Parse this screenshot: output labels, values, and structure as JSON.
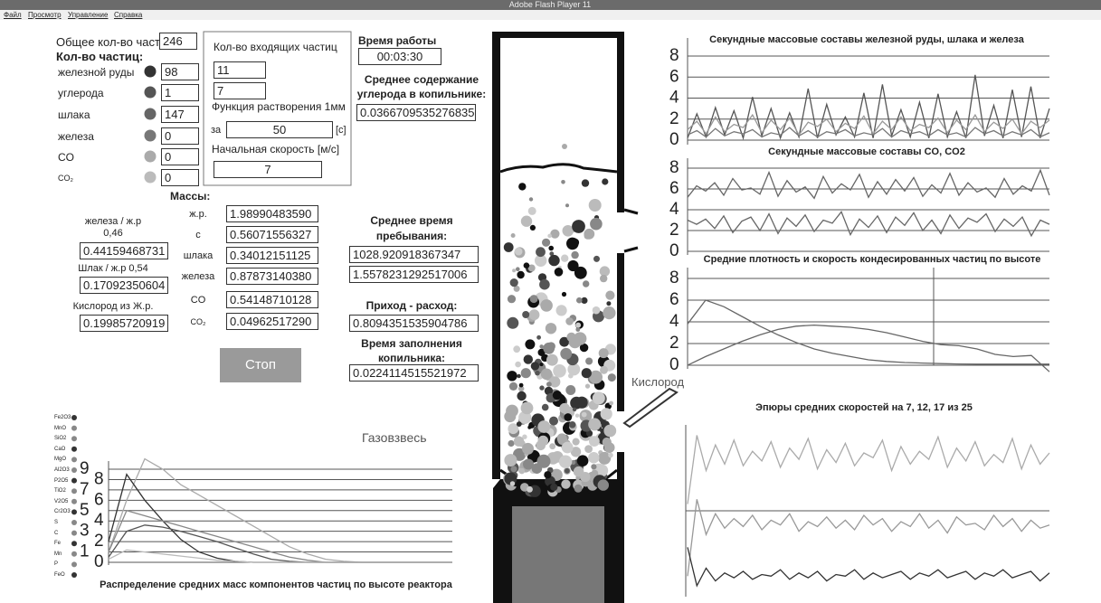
{
  "window": {
    "title": "Adobe Flash Player 11",
    "menu": [
      "Файл",
      "Просмотр",
      "Управление",
      "Справка"
    ]
  },
  "particles": {
    "total_label": "Общее кол-во частиц",
    "total": "246",
    "header": "Кол-во частиц:",
    "rows": [
      {
        "label": "железной руды",
        "value": "98",
        "color": "#333333"
      },
      {
        "label": "углерода",
        "value": "1",
        "color": "#555555"
      },
      {
        "label": "шлака",
        "value": "147",
        "color": "#666666"
      },
      {
        "label": "железа",
        "value": "0",
        "color": "#777777"
      },
      {
        "label": "CO",
        "value": "0",
        "color": "#aaaaaa"
      },
      {
        "label": "CO₂",
        "value": "0",
        "color": "#bbbbbb"
      }
    ]
  },
  "incoming": {
    "title": "Кол-во входящих частиц",
    "inputs": [
      "11",
      "7"
    ],
    "dissolution_label": "Функция растворения 1мм",
    "for_label": "за",
    "period": "50",
    "period_unit": "[c]",
    "speed_label": "Начальная скорость [м/с]",
    "speed": "7"
  },
  "runtime": {
    "label": "Время работы",
    "value": "00:03:30"
  },
  "carbon": {
    "label": "Среднее содержание углерода в копильнике:",
    "value": "0.0366709535276835"
  },
  "masses": {
    "title": "Массы:",
    "rows": [
      {
        "label": "ж.р.",
        "value": "1.98990483590"
      },
      {
        "label": "с",
        "value": "0.56071556327"
      },
      {
        "label": "шлака",
        "value": "0.34012151125"
      },
      {
        "label": "железа",
        "value": "0.87873140380"
      },
      {
        "label": "CO",
        "value": "0.54148710128"
      },
      {
        "label": "CO₂",
        "value": "0.04962517290"
      }
    ]
  },
  "ratios": [
    {
      "label": "железа / ж.р",
      "sublabel": "0,46",
      "value": "0.44159468731"
    },
    {
      "label": "Шлак / ж.р 0,54",
      "value": "0.17092350604"
    },
    {
      "label": "Кислород из Ж.р.",
      "value": "0.19985720919"
    }
  ],
  "residence": {
    "label": "Среднее время пребывания:",
    "values": [
      "1028.920918367347",
      "1.5578231292517006"
    ]
  },
  "balance": {
    "label": "Приход - расход:",
    "value": "0.8094351535904786"
  },
  "fill_time": {
    "label": "Время заполнения копильника:",
    "value": "0.0224114515521972"
  },
  "stop_button": "Стоп",
  "gas_label": "Газовзвесь",
  "oxygen_label": "Кислород",
  "components": [
    "Fe2O3",
    "MnO",
    "SiO2",
    "CaO",
    "MgO",
    "Al2O3",
    "P2O5",
    "TiO2",
    "V2O5",
    "Cr2O3",
    "S",
    "C",
    "Fe",
    "Mn",
    "P",
    "FeO"
  ],
  "charts": [
    {
      "type": "line",
      "title": "Распределение средних масс компонентов частиц по высоте реактора",
      "ylim": [
        0,
        9
      ],
      "yticks": [
        0,
        1,
        2,
        3,
        4,
        5,
        6,
        7,
        8,
        9
      ],
      "grid": true,
      "series": [
        {
          "color": "#aaaaaa",
          "values": [
            1,
            6,
            10,
            9,
            7.5,
            6.5,
            5.5,
            4.5,
            3.5,
            2.5,
            1.5,
            0.8,
            0.3,
            0.1,
            0,
            0,
            0,
            0,
            0,
            0
          ]
        },
        {
          "color": "#333333",
          "values": [
            2,
            8.5,
            6,
            4,
            2.2,
            1,
            0.4,
            0.1,
            0,
            0,
            0,
            0,
            0,
            0,
            0,
            0,
            0,
            0,
            0,
            0
          ]
        },
        {
          "color": "#888888",
          "values": [
            1,
            5,
            4.5,
            4,
            3.5,
            3,
            2.5,
            2,
            1.5,
            1,
            0.5,
            0.2,
            0,
            0,
            0,
            0,
            0,
            0,
            0,
            0
          ]
        },
        {
          "color": "#555555",
          "values": [
            0.5,
            3,
            3.6,
            3.4,
            3,
            2.5,
            2,
            1.4,
            0.8,
            0.3,
            0.1,
            0,
            0,
            0,
            0,
            0,
            0,
            0,
            0,
            0
          ]
        },
        {
          "color": "#bbbbbb",
          "values": [
            0.3,
            1.2,
            1,
            0.8,
            0.6,
            0.4,
            0.2,
            0.1,
            0,
            0,
            0,
            0,
            0,
            0,
            0,
            0,
            0,
            0,
            0,
            0
          ]
        }
      ]
    },
    {
      "type": "line",
      "title": "Секундные массовые составы железной руды, шлака и железа",
      "ylim": [
        0,
        8
      ],
      "yticks": [
        0,
        2,
        4,
        6,
        8
      ],
      "grid": true,
      "series": [
        {
          "color": "#555555",
          "values": [
            0.2,
            2.5,
            0.3,
            3.1,
            0.5,
            2.8,
            0.2,
            4.1,
            0.4,
            3.0,
            0.2,
            2.6,
            0.3,
            4.9,
            0.2,
            3.4,
            0.5,
            2.2,
            0.3,
            4.5,
            0.2,
            5.3,
            0.4,
            2.9,
            0.3,
            3.6,
            0.2,
            4.4,
            0.3,
            2.7,
            0.2,
            6.2,
            0.4,
            3.3,
            0.2,
            4.8,
            0.3,
            5.1,
            0.2,
            3.0
          ]
        },
        {
          "color": "#999999",
          "values": [
            1.0,
            1.8,
            0.6,
            2.2,
            0.8,
            1.5,
            1.2,
            2.4,
            0.7,
            1.9,
            1.0,
            2.1,
            0.5,
            1.7,
            1.3,
            2.0,
            0.8,
            1.6,
            1.1,
            2.3,
            0.6,
            1.8,
            1.0,
            2.2,
            0.9,
            1.5,
            1.2,
            2.1,
            0.7,
            1.9,
            1.0,
            2.4,
            0.8,
            1.7,
            1.1,
            2.0,
            0.6,
            1.8,
            1.2,
            1.9
          ]
        },
        {
          "color": "#777777",
          "values": [
            0.5,
            0.9,
            0.3,
            1.1,
            0.4,
            0.8,
            0.6,
            1.0,
            0.3,
            0.7,
            0.5,
            1.2,
            0.4,
            0.9,
            0.3,
            0.8,
            0.6,
            1.0,
            0.4,
            0.7,
            0.5,
            1.1,
            0.3,
            0.9,
            0.6,
            0.8,
            0.4,
            1.0,
            0.5,
            0.7,
            0.3,
            1.2,
            0.6,
            0.9,
            0.4,
            0.8,
            0.5,
            1.0,
            0.3,
            0.7
          ]
        }
      ]
    },
    {
      "type": "line",
      "title": "Секундные массовые составы CO, CO2",
      "ylim": [
        0,
        8
      ],
      "yticks": [
        0,
        2,
        4,
        6,
        8
      ],
      "grid": true,
      "series": [
        {
          "color": "#666666",
          "values": [
            5.2,
            6.3,
            5.8,
            6.6,
            5.4,
            7.0,
            5.9,
            6.1,
            5.5,
            7.6,
            5.3,
            6.8,
            5.7,
            6.2,
            5.1,
            7.2,
            5.6,
            6.5,
            5.9,
            7.4,
            5.2,
            6.7,
            5.5,
            6.9,
            5.8,
            7.1,
            5.3,
            6.4,
            5.6,
            7.5,
            5.4,
            6.6,
            5.7,
            6.1,
            5.2,
            7.0,
            5.5,
            6.3,
            5.8,
            7.8,
            5.4
          ]
        },
        {
          "color": "#666666",
          "values": [
            3.0,
            2.6,
            3.1,
            2.2,
            3.4,
            1.8,
            2.9,
            3.3,
            2.0,
            3.6,
            1.7,
            3.2,
            2.4,
            3.5,
            1.9,
            3.0,
            2.7,
            3.8,
            1.6,
            3.1,
            2.3,
            3.4,
            1.8,
            3.3,
            2.5,
            3.7,
            2.0,
            3.0,
            1.7,
            3.5,
            2.2,
            3.2,
            2.8,
            3.6,
            1.9,
            3.1,
            2.4,
            3.3,
            1.5,
            3.0,
            2.6
          ]
        }
      ]
    },
    {
      "type": "line",
      "title": "Средние плотность и скорость кондесированных частиц по высоте",
      "ylim": [
        0,
        8
      ],
      "yticks": [
        0,
        2,
        4,
        6,
        8
      ],
      "grid": true,
      "series": [
        {
          "color": "#666666",
          "values": [
            3.8,
            6.0,
            5.4,
            4.5,
            3.6,
            2.8,
            2.1,
            1.5,
            1.1,
            0.8,
            0.5,
            0.35,
            0.25,
            0.2,
            0.15,
            0.12,
            0.1,
            0.1,
            0.1,
            0.1,
            0.1
          ]
        },
        {
          "color": "#666666",
          "values": [
            0,
            0.8,
            1.5,
            2.2,
            2.8,
            3.3,
            3.6,
            3.7,
            3.6,
            3.5,
            3.3,
            3.0,
            2.6,
            2.2,
            1.9,
            1.8,
            1.5,
            1.0,
            0.8,
            0.9,
            -0.6
          ]
        }
      ]
    },
    {
      "type": "line",
      "title": "Эпюры средних скоростей на 7, 12, 17 из 25",
      "ylim": [
        0,
        10
      ],
      "series": [
        {
          "color": "#aaaaaa",
          "values": [
            5.5,
            9.8,
            7.6,
            9.2,
            8.0,
            9.5,
            7.9,
            8.8,
            8.2,
            9.4,
            7.8,
            9.0,
            8.3,
            9.6,
            7.7,
            8.9,
            8.1,
            9.3,
            7.9,
            8.7,
            8.4,
            9.5,
            7.6,
            9.1,
            8.0,
            8.8,
            8.3,
            9.7,
            7.8,
            9.0,
            8.2,
            9.4,
            7.9,
            8.6,
            8.1,
            9.6,
            7.7,
            9.2,
            8.0,
            8.7
          ]
        },
        {
          "color": "#999999",
          "values": [
            1.0,
            5.8,
            3.6,
            4.9,
            4.0,
            4.6,
            4.1,
            4.8,
            3.9,
            4.5,
            4.2,
            4.9,
            3.8,
            4.4,
            4.1,
            4.7,
            4.0,
            4.5,
            3.9,
            4.8,
            4.2,
            4.6,
            3.8,
            4.4,
            4.1,
            4.9,
            4.0,
            4.5,
            3.7,
            4.7,
            4.2,
            4.3,
            3.9,
            4.8,
            4.1,
            4.6,
            3.8,
            4.5,
            4.0,
            4.2
          ]
        },
        {
          "color": "#333333",
          "values": [
            2.8,
            0.4,
            1.5,
            0.7,
            1.2,
            0.9,
            1.3,
            0.8,
            1.1,
            1.0,
            1.4,
            0.8,
            1.2,
            0.9,
            1.3,
            0.7,
            1.1,
            1.0,
            1.4,
            0.8,
            1.2,
            0.9,
            1.1,
            1.3,
            0.8,
            1.2,
            1.0,
            1.4,
            0.9,
            1.1,
            1.3,
            0.8,
            1.2,
            1.0,
            1.4,
            0.9,
            1.1,
            1.3,
            0.7,
            1.2
          ]
        }
      ]
    }
  ]
}
